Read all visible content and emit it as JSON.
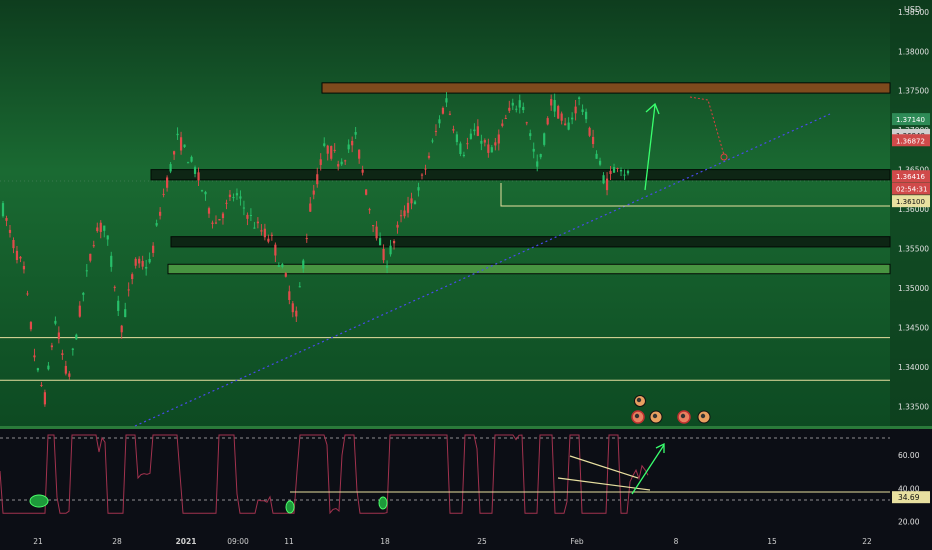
{
  "chart_data": [
    {
      "type": "candlestick",
      "currency_label": "USD",
      "y_range": [
        1.3325,
        1.3865
      ],
      "y_ticks": [
        1.385,
        1.38,
        1.375,
        1.37,
        1.365,
        1.36,
        1.355,
        1.35,
        1.345,
        1.34,
        1.335
      ],
      "y_tick_labels": [
        "1.38500",
        "1.38000",
        "1.37500",
        "1.37000",
        "1.36500",
        "1.36000",
        "1.35500",
        "1.35000",
        "1.34500",
        "1.34000",
        "1.33500"
      ],
      "x_labels": [
        "21",
        "28",
        "2021",
        "09:00",
        "11",
        "18",
        "25",
        "Feb",
        "8",
        "15",
        "22"
      ],
      "price_labels": [
        {
          "text": "1.37140",
          "price": 1.3714,
          "color": "#2e8b57"
        },
        {
          "text": "1.36940",
          "price": 1.3694,
          "color": "#cfcfcf"
        },
        {
          "text": "1.36872",
          "price": 1.36872,
          "color": "#d04a4a"
        },
        {
          "text": "1.36416",
          "price": 1.36416,
          "color": "#d04a4a"
        },
        {
          "text": "02:54:31",
          "price": 1.3626,
          "color": "#d04a4a"
        },
        {
          "text": "1.36100",
          "price": 1.361,
          "color": "#e8e0a0"
        }
      ],
      "zones": [
        {
          "from": 1.3747,
          "to": 1.376,
          "color": "#8a4a1c"
        },
        {
          "from": 1.3637,
          "to": 1.365,
          "color": "#0d1f12"
        },
        {
          "from": 1.3552,
          "to": 1.3565,
          "color": "#0d1f12"
        },
        {
          "from": 1.3518,
          "to": 1.353,
          "color": "#4e9a44"
        }
      ],
      "horizontal_lines": [
        1.3437,
        1.3383
      ],
      "candle_count": 180
    },
    {
      "type": "line",
      "indicator": "oscillator",
      "y_range": [
        15,
        75
      ],
      "y_ticks": [
        60,
        40,
        20
      ],
      "y_tick_labels": [
        "60.00",
        "40.00",
        "20.00"
      ],
      "current_value_label": "34.69",
      "current_value": 34.69,
      "upper_band": 70,
      "lower_band": 30
    }
  ]
}
